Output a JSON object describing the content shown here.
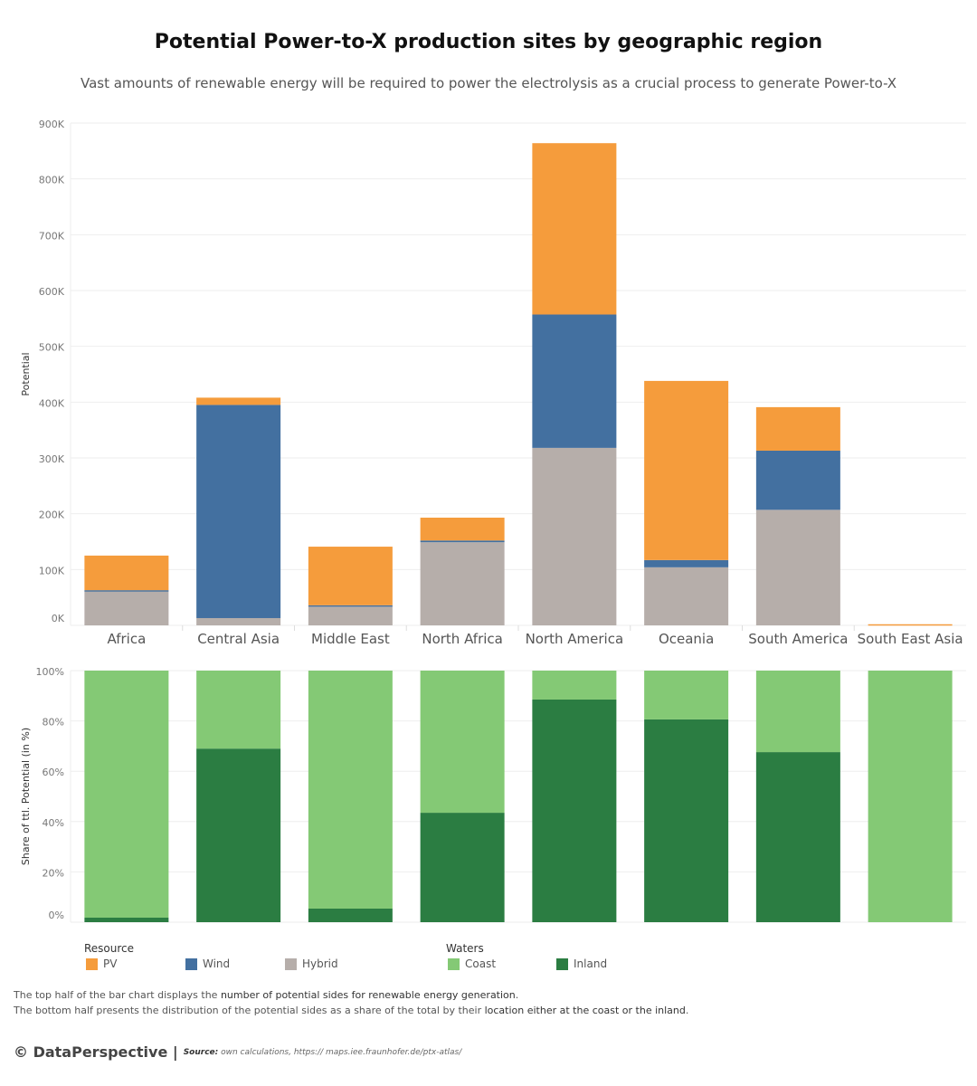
{
  "title": "Potential Power-to-X production sites by geographic region",
  "subtitle": "Vast amounts of renewable energy will be required to power the electrolysis as a crucial process to generate Power-to-X",
  "chart_data": [
    {
      "type": "bar",
      "stacked": true,
      "ylabel": "Potential",
      "ylim": [
        0,
        900000
      ],
      "yticks": [
        "0K",
        "100K",
        "200K",
        "300K",
        "400K",
        "500K",
        "600K",
        "700K",
        "800K",
        "900K"
      ],
      "categories": [
        "Africa",
        "Central Asia",
        "Middle East",
        "North Africa",
        "North America",
        "Oceania",
        "South America",
        "South East Asia"
      ],
      "series": [
        {
          "name": "Hybrid",
          "color": "#b6aeaa",
          "values": [
            61000,
            13000,
            34000,
            149000,
            318000,
            104000,
            207000,
            0
          ]
        },
        {
          "name": "Wind",
          "color": "#4370a0",
          "values": [
            2000,
            382000,
            2000,
            3000,
            239000,
            13000,
            106000,
            0
          ]
        },
        {
          "name": "PV",
          "color": "#f59c3c",
          "values": [
            62000,
            13000,
            105000,
            41000,
            307000,
            321000,
            78000,
            2000
          ]
        }
      ],
      "grid": true
    },
    {
      "type": "bar",
      "stacked": true,
      "ylabel": "Share of ttl. Potential (in %)",
      "ylim": [
        0,
        100
      ],
      "yticks": [
        "0%",
        "20%",
        "40%",
        "60%",
        "80%",
        "100%"
      ],
      "categories": [
        "Africa",
        "Central Asia",
        "Middle East",
        "North Africa",
        "North America",
        "Oceania",
        "South America",
        "South East Asia"
      ],
      "series": [
        {
          "name": "Inland",
          "color": "#2b7d42",
          "values": [
            1.8,
            69,
            5.4,
            43.5,
            88.5,
            80.6,
            67.6,
            0
          ]
        },
        {
          "name": "Coast",
          "color": "#84c975",
          "values": [
            98.2,
            31,
            94.6,
            56.5,
            11.5,
            19.4,
            32.4,
            100
          ]
        }
      ],
      "grid": true
    }
  ],
  "legend": {
    "resource_title": "Resource",
    "resource": [
      {
        "label": "PV",
        "color": "#f59c3c"
      },
      {
        "label": "Wind",
        "color": "#4370a0"
      },
      {
        "label": "Hybrid",
        "color": "#b6aeaa"
      }
    ],
    "waters_title": "Waters",
    "waters": [
      {
        "label": "Coast",
        "color": "#84c975"
      },
      {
        "label": "Inland",
        "color": "#2b7d42"
      }
    ]
  },
  "notes": {
    "line1_a": "The top half of the bar chart displays the ",
    "line1_b": "number of potential sides for renewable energy generation",
    "line1_c": ".",
    "line2_a": "The bottom half presents the distribution of the potential sides as a share of the total by their ",
    "line2_b": "location either at the coast or the inland",
    "line2_c": "."
  },
  "footer": {
    "brand": "© DataPerspective |",
    "source_label": "Source:",
    "source_text": " own calculations, https:// maps.iee.fraunhofer.de/ptx-atlas/"
  }
}
